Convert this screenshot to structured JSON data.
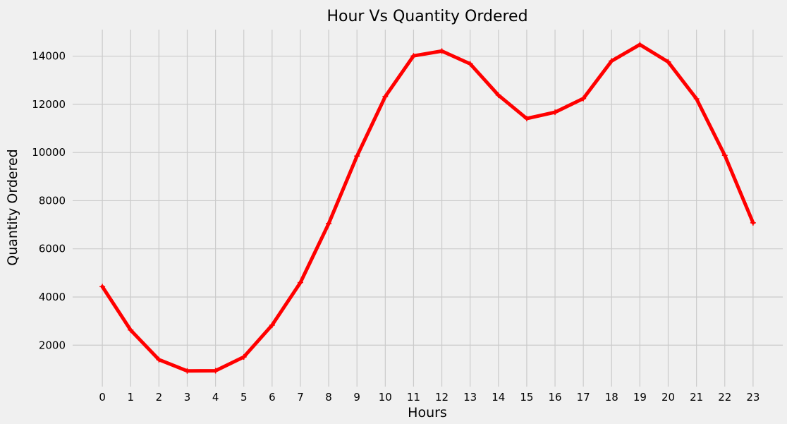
{
  "chart_data": {
    "type": "line",
    "title": "Hour Vs Quantity Ordered",
    "xlabel": "Hours",
    "ylabel": "Quantity Ordered",
    "categories": [
      "0",
      "1",
      "2",
      "3",
      "4",
      "5",
      "6",
      "7",
      "8",
      "9",
      "10",
      "11",
      "12",
      "13",
      "14",
      "15",
      "16",
      "17",
      "18",
      "19",
      "20",
      "21",
      "22",
      "23"
    ],
    "series": [
      {
        "values": [
          4430,
          2630,
          1400,
          930,
          940,
          1510,
          2830,
          4600,
          7050,
          9850,
          12320,
          14010,
          14210,
          13680,
          12380,
          11410,
          11670,
          12240,
          13800,
          14480,
          13760,
          12230,
          9880,
          7080
        ]
      }
    ],
    "yticks": [
      2000,
      4000,
      6000,
      8000,
      10000,
      12000,
      14000
    ],
    "ylim": [
      280,
      15100
    ],
    "grid": true,
    "line_color": "#ff0000",
    "marker": "+",
    "background": "#f0f0f0",
    "grid_color": "#cbcbcb"
  }
}
